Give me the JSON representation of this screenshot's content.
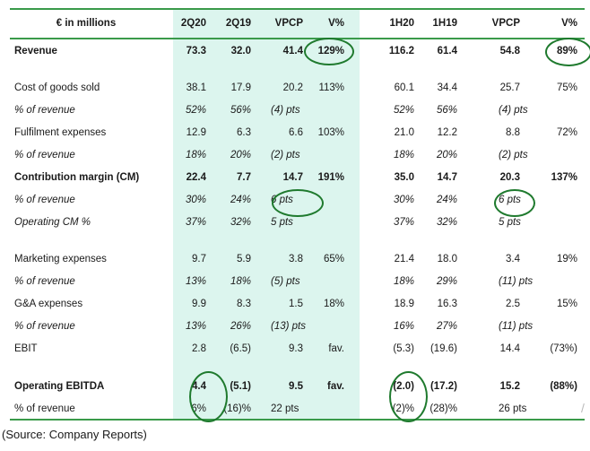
{
  "table": {
    "header": {
      "label": "€ in millions",
      "cols": [
        "2Q20",
        "2Q19",
        "VPCP",
        "V%",
        "1H20",
        "1H19",
        "VPCP",
        "V%"
      ]
    },
    "rows": [
      {
        "label": "Revenue",
        "style": "bold",
        "values": [
          "73.3",
          "32.0",
          "41.4",
          "129%",
          "116.2",
          "61.4",
          "54.8",
          "89%"
        ]
      },
      {
        "label": "Cost of goods sold",
        "style": "normal",
        "values": [
          "38.1",
          "17.9",
          "20.2",
          "113%",
          "60.1",
          "34.4",
          "25.7",
          "75%"
        ]
      },
      {
        "label": "% of revenue",
        "style": "italic",
        "values": [
          "52%",
          "56%",
          "(4) pts",
          "",
          "52%",
          "56%",
          "(4) pts",
          ""
        ]
      },
      {
        "label": "Fulfilment expenses",
        "style": "normal",
        "values": [
          "12.9",
          "6.3",
          "6.6",
          "103%",
          "21.0",
          "12.2",
          "8.8",
          "72%"
        ]
      },
      {
        "label": "% of revenue",
        "style": "italic",
        "values": [
          "18%",
          "20%",
          "(2) pts",
          "",
          "18%",
          "20%",
          "(2) pts",
          ""
        ]
      },
      {
        "label": "Contribution margin (CM)",
        "style": "bold",
        "values": [
          "22.4",
          "7.7",
          "14.7",
          "191%",
          "35.0",
          "14.7",
          "20.3",
          "137%"
        ]
      },
      {
        "label": "% of revenue",
        "style": "italic",
        "values": [
          "30%",
          "24%",
          "6 pts",
          "",
          "30%",
          "24%",
          "6 pts",
          ""
        ]
      },
      {
        "label": "Operating CM %",
        "style": "italic",
        "values": [
          "37%",
          "32%",
          "5 pts",
          "",
          "37%",
          "32%",
          "5 pts",
          ""
        ]
      },
      {
        "label": "Marketing expenses",
        "style": "normal",
        "values": [
          "9.7",
          "5.9",
          "3.8",
          "65%",
          "21.4",
          "18.0",
          "3.4",
          "19%"
        ]
      },
      {
        "label": "% of revenue",
        "style": "italic",
        "values": [
          "13%",
          "18%",
          "(5) pts",
          "",
          "18%",
          "29%",
          "(11) pts",
          ""
        ]
      },
      {
        "label": "G&A expenses",
        "style": "normal",
        "values": [
          "9.9",
          "8.3",
          "1.5",
          "18%",
          "18.9",
          "16.3",
          "2.5",
          "15%"
        ]
      },
      {
        "label": "% of revenue",
        "style": "italic",
        "values": [
          "13%",
          "26%",
          "(13) pts",
          "",
          "16%",
          "27%",
          "(11) pts",
          ""
        ]
      },
      {
        "label": "EBIT",
        "style": "normal",
        "values": [
          "2.8",
          "(6.5)",
          "9.3",
          "fav.",
          "(5.3)",
          "(19.6)",
          "14.4",
          "(73%)"
        ]
      },
      {
        "label": "Operating EBITDA",
        "style": "bold",
        "values": [
          "4.4",
          "(5.1)",
          "9.5",
          "fav.",
          "(2.0)",
          "(17.2)",
          "15.2",
          "(88%)"
        ]
      },
      {
        "label": "% of revenue",
        "style": "normal",
        "values": [
          "6%",
          "(16)%",
          "22 pts",
          "",
          "(2)%",
          "(28)%",
          "26 pts",
          ""
        ]
      }
    ]
  },
  "source": "(Source: Company Reports)",
  "colors": {
    "accent_line": "#3a9a4a",
    "highlight_shade": "#dcf5ee",
    "circle": "#1f7a2e"
  }
}
